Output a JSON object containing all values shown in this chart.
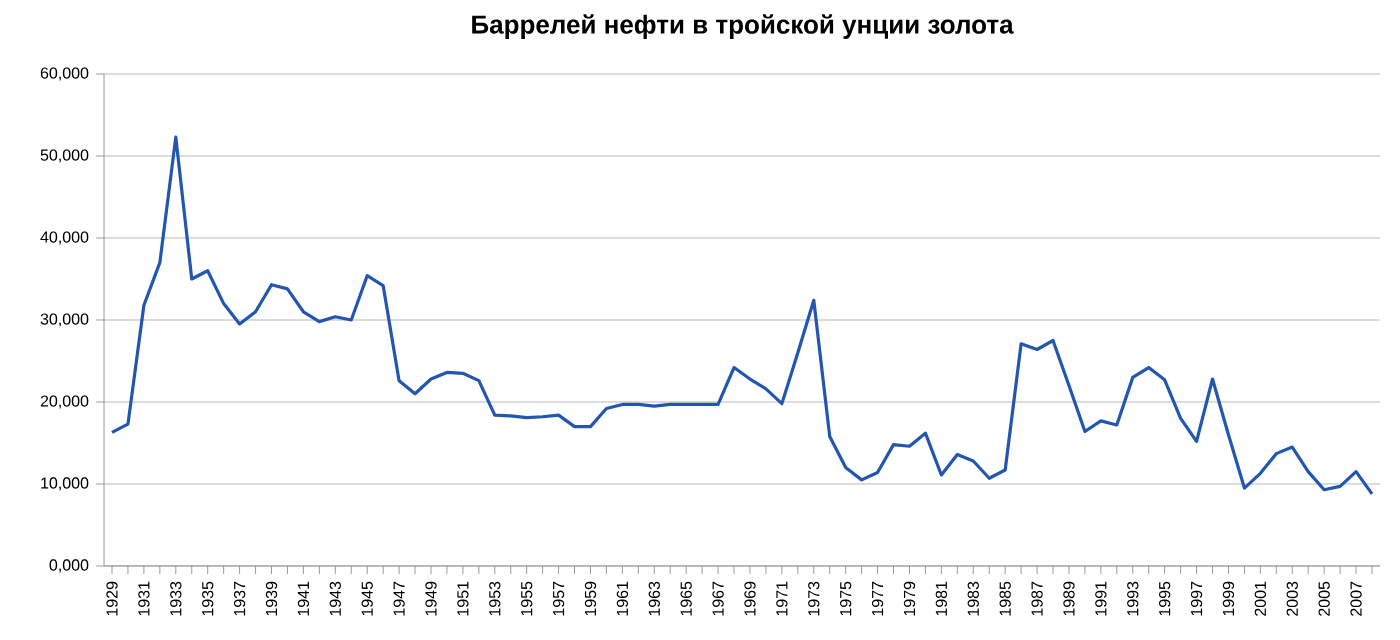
{
  "chart_data": {
    "type": "line",
    "title": "Баррелей нефти в тройской унции золота",
    "categories": [
      "1929",
      null,
      "1931",
      null,
      "1933",
      null,
      "1935",
      null,
      "1937",
      null,
      "1939",
      null,
      "1941",
      null,
      "1943",
      null,
      "1945",
      null,
      "1947",
      null,
      "1949",
      null,
      "1951",
      null,
      "1953",
      null,
      "1955",
      null,
      "1957",
      null,
      "1959",
      null,
      "1961",
      null,
      "1963",
      null,
      "1965",
      null,
      "1967",
      null,
      "1969",
      null,
      "1971",
      null,
      "1973",
      null,
      "1975",
      null,
      "1977",
      null,
      "1979",
      null,
      "1981",
      null,
      "1983",
      null,
      "1985",
      null,
      "1987",
      null,
      "1989",
      null,
      "1991",
      null,
      "1993",
      null,
      "1995",
      null,
      "1997",
      null,
      "1999",
      null,
      "2001",
      null,
      "2003",
      null,
      "2005",
      null,
      "2007",
      null
    ],
    "series": [
      {
        "color": "#2356b0",
        "values": [
          16300,
          17300,
          31800,
          37000,
          52300,
          35000,
          36000,
          32000,
          29500,
          31000,
          34300,
          33800,
          31000,
          29800,
          30400,
          30000,
          35400,
          34200,
          22600,
          21000,
          22800,
          23600,
          23500,
          22600,
          18400,
          18300,
          18100,
          18200,
          18400,
          17000,
          17000,
          19200,
          19700,
          19700,
          19500,
          19700,
          19700,
          19700,
          19700,
          24200,
          22800,
          21600,
          19800,
          26000,
          32400,
          15800,
          12000,
          10500,
          11400,
          14800,
          14600,
          16200,
          11100,
          13600,
          12800,
          10700,
          11700,
          27100,
          26400,
          27500,
          22000,
          16400,
          17700,
          17200,
          23000,
          24200,
          22700,
          18000,
          15200,
          22800,
          16000,
          9500,
          11300,
          13700,
          14500,
          11500,
          9300,
          9700,
          11500,
          8800
        ]
      }
    ],
    "ylim": [
      0,
      60000
    ],
    "yticks": [
      {
        "value": 0,
        "label": "0,000"
      },
      {
        "value": 10000,
        "label": "10,000"
      },
      {
        "value": 20000,
        "label": "20,000"
      },
      {
        "value": 30000,
        "label": "30,000"
      },
      {
        "value": 40000,
        "label": "40,000"
      },
      {
        "value": 50000,
        "label": "50,000"
      },
      {
        "value": 60000,
        "label": "60,000"
      }
    ],
    "grid": "y",
    "marker": "none",
    "line_style": "solid"
  }
}
